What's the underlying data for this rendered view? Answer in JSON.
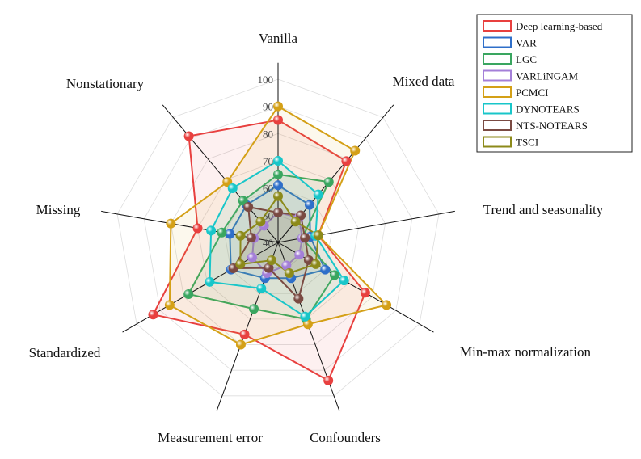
{
  "chart_data": {
    "type": "radar",
    "categories": [
      "Vanilla",
      "Mixed data",
      "Trend and seasonality",
      "Min-max normalization",
      "Confounders",
      "Measurement error",
      "Standardized",
      "Missing",
      "Nonstationary"
    ],
    "rlim": [
      40,
      100
    ],
    "rticks": [
      40,
      50,
      60,
      70,
      80,
      90,
      100
    ],
    "grid": true,
    "legend": "upper right",
    "series": [
      {
        "name": "Deep learning-based",
        "color": "#e8403f",
        "values": [
          85,
          79,
          55,
          77,
          94,
          76,
          93,
          70,
          91
        ]
      },
      {
        "name": "VAR",
        "color": "#2f6fc9",
        "values": [
          61,
          58,
          52,
          60,
          54,
          54,
          60,
          58,
          58
        ]
      },
      {
        "name": "LGC",
        "color": "#3aa660",
        "values": [
          65,
          69,
          49,
          64,
          70,
          66,
          78,
          61,
          60
        ]
      },
      {
        "name": "VARLiNGAM",
        "color": "#a47fd8",
        "values": [
          51,
          52,
          49,
          49,
          49,
          52,
          51,
          49,
          48
        ]
      },
      {
        "name": "PCMCI",
        "color": "#d4a017",
        "values": [
          90,
          84,
          55,
          86,
          72,
          80,
          86,
          80,
          69
        ]
      },
      {
        "name": "DYNOTEARS",
        "color": "#18c6c9",
        "values": [
          70,
          63,
          54,
          68,
          69,
          58,
          69,
          65,
          66
        ]
      },
      {
        "name": "NTS-NOTEARS",
        "color": "#7a4a42",
        "values": [
          51,
          53,
          50,
          53,
          62,
          50,
          59,
          50,
          57
        ]
      },
      {
        "name": "TSCI",
        "color": "#8c8a1a",
        "values": [
          57,
          50,
          55,
          56,
          52,
          47,
          56,
          54,
          50
        ]
      }
    ]
  }
}
